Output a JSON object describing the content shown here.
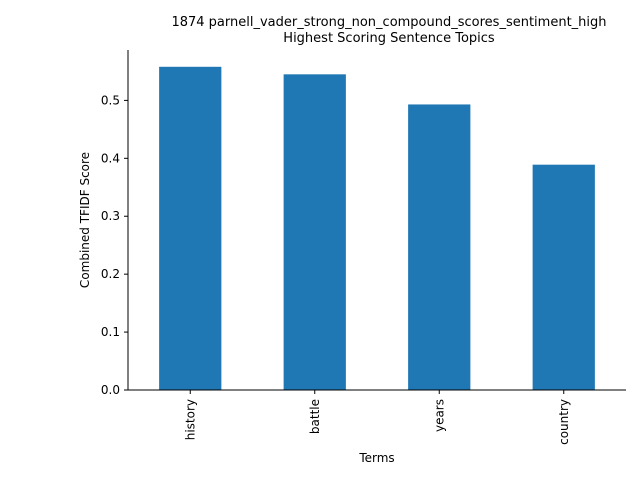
{
  "chart_data": {
    "type": "bar",
    "title": "1874 parnell_vader_strong_non_compound_scores_sentiment_high",
    "subtitle": "Highest Scoring Sentence Topics",
    "xlabel": "Terms",
    "ylabel": "Combined TFIDF Score",
    "categories": [
      "history",
      "battle",
      "years",
      "country"
    ],
    "values": [
      0.558,
      0.545,
      0.493,
      0.389
    ],
    "ylim": [
      0,
      0.587
    ],
    "yticks": [
      0.0,
      0.1,
      0.2,
      0.3,
      0.4,
      0.5
    ],
    "ytick_labels": [
      "0.0",
      "0.1",
      "0.2",
      "0.3",
      "0.4",
      "0.5"
    ],
    "grid": false,
    "legend": "none",
    "bar_color": "#1f77b4"
  }
}
